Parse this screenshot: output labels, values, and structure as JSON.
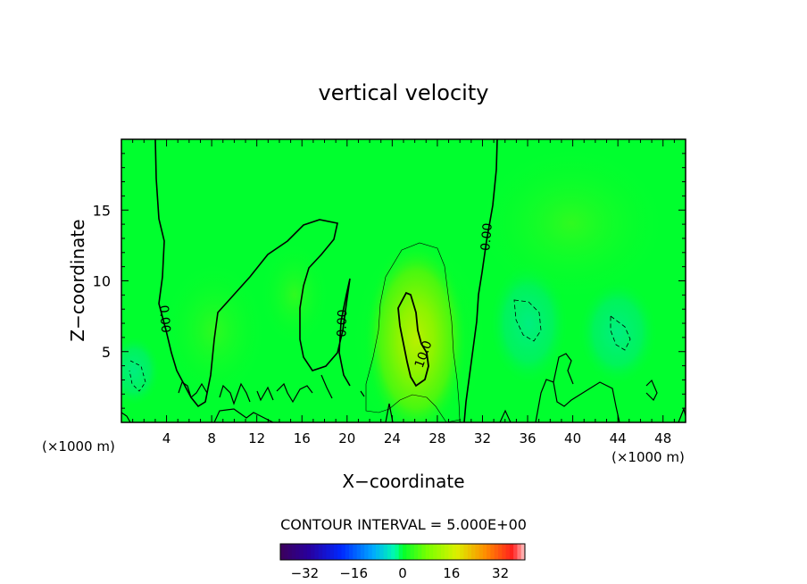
{
  "chart_data": {
    "type": "heatmap",
    "title": "vertical velocity",
    "xlabel": "X−coordinate",
    "ylabel": "Z−coordinate",
    "x_unit_left": "(×1000 m)",
    "x_unit_right": "(×1000 m)",
    "xlim": [
      0,
      50
    ],
    "ylim": [
      0,
      20
    ],
    "x_ticks": [
      4,
      8,
      12,
      16,
      20,
      24,
      28,
      32,
      36,
      40,
      44,
      48
    ],
    "y_ticks": [
      5,
      10,
      15
    ],
    "contour_interval_text": "CONTOUR INTERVAL = 5.000E+00",
    "contour_labels": [
      {
        "text": "0.00",
        "x": 3.8,
        "z": 7.3,
        "rotate": 85
      },
      {
        "text": "0.00",
        "x": 19.6,
        "z": 7.0,
        "rotate": -88
      },
      {
        "text": "0.00",
        "x": 32.4,
        "z": 13.1,
        "rotate": -85
      },
      {
        "text": "10.0",
        "x": 26.8,
        "z": 4.8,
        "rotate": -70
      }
    ],
    "colorbar": {
      "min": -40,
      "max": 40,
      "tick_values": [
        -32,
        -16,
        0,
        16,
        32
      ],
      "tick_labels": [
        "−32",
        "−16",
        "0",
        "16",
        "32"
      ]
    },
    "colors": {
      "background": "#00ff2e",
      "updraft_core": "#b8f000",
      "downdraft": "#00ee80",
      "contour": "#000000"
    },
    "field_features": [
      {
        "kind": "updraft",
        "x": 26,
        "z": 7,
        "w_max": 14
      },
      {
        "kind": "downdraft",
        "x": 37,
        "z": 8,
        "w_min": -5
      },
      {
        "kind": "downdraft",
        "x": 44,
        "z": 7,
        "w_min": -5
      },
      {
        "kind": "downdraft",
        "x": 1,
        "z": 3.5,
        "w_min": -5
      }
    ],
    "grid": false,
    "legend": "bottom"
  }
}
